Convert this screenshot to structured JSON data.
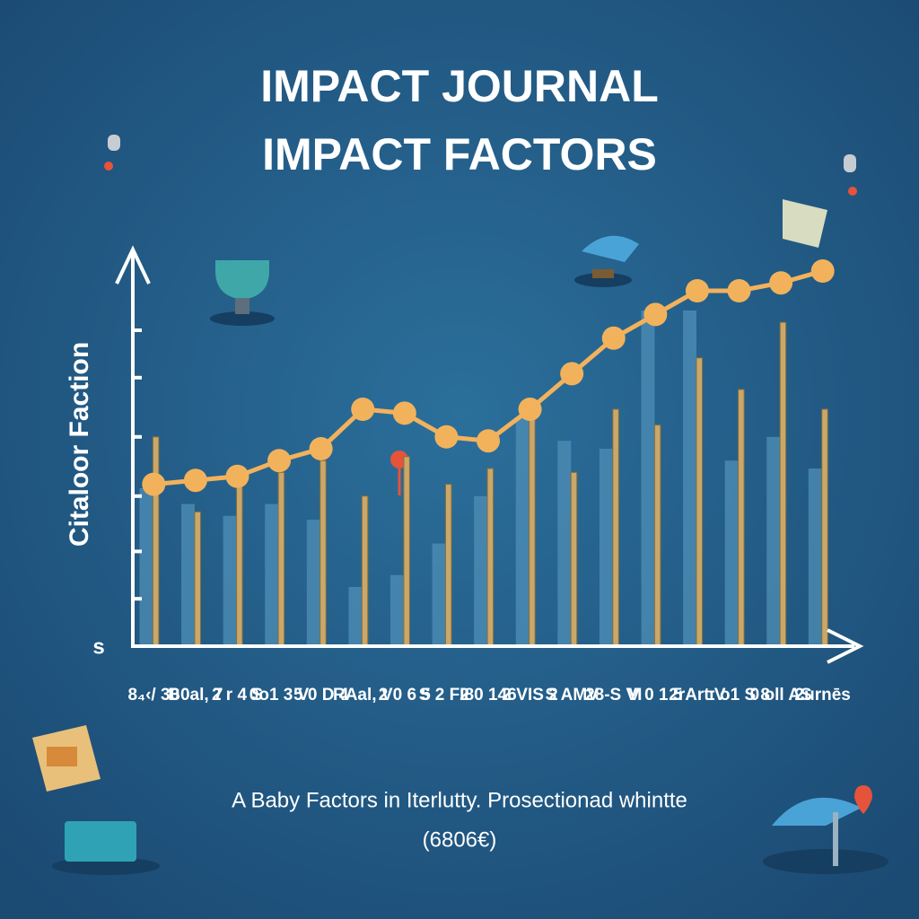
{
  "chart_data": {
    "type": "bar",
    "title_lines": [
      "IMPACT JOURNAL",
      "IMPACT FACTORS"
    ],
    "y_label": "Citaloor Faction",
    "y_origin_label": "s",
    "caption_lines": [
      "A Baby Factors in Iterlutty. Prosectionad whintte",
      "(6806€)"
    ],
    "categories": [
      "8₄‹/ 30",
      "B0al, 7",
      "2 r 4 S",
      "0o1 3 V",
      "5 0 D 4",
      "RAal, V",
      "2 0 6 5",
      "S 2 FI8",
      "2 0 146",
      "2 VIS 2",
      "S AMV",
      "28-S VI",
      "V 0 1 5",
      "2rArt V",
      "ɪ o1 S 8",
      "0 oll AS",
      "2urnēs"
    ],
    "series": [
      {
        "color": "#4f8fb5",
        "values": [
          40,
          36,
          33,
          36,
          32,
          15,
          18,
          26,
          38,
          58,
          52,
          50,
          85,
          85,
          47,
          53,
          45
        ]
      },
      {
        "color": "#c9a86a",
        "values": [
          53,
          34,
          44,
          44,
          47,
          38,
          48,
          41,
          45,
          58,
          44,
          60,
          56,
          73,
          65,
          82,
          60
        ]
      }
    ],
    "line": {
      "color": "#f2b25c",
      "values": [
        41,
        42,
        43,
        47,
        50,
        60,
        59,
        53,
        52,
        60,
        69,
        78,
        84,
        90,
        90,
        92,
        95
      ]
    },
    "ylim": [
      0,
      100
    ],
    "yticks": [
      12,
      24,
      38,
      53,
      68,
      80
    ]
  }
}
